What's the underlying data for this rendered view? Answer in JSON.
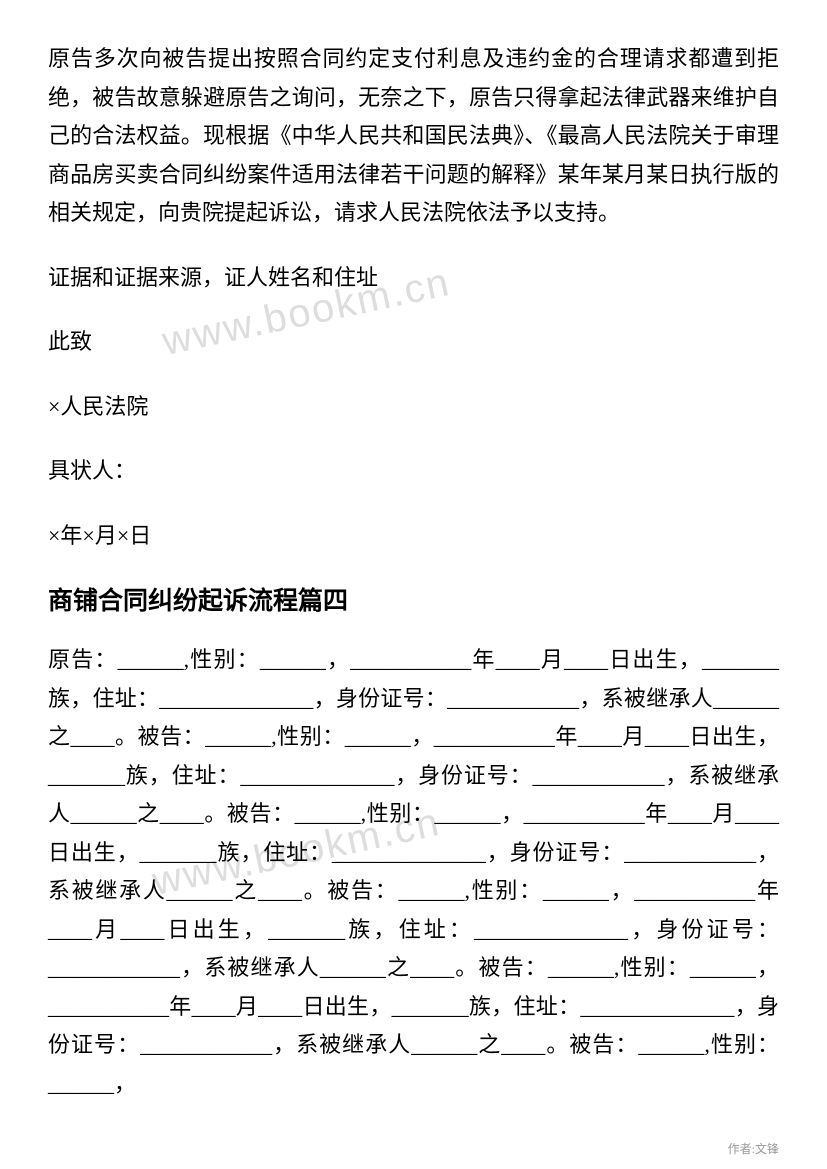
{
  "watermark": "www.bookm.cn",
  "para1": "原告多次向被告提出按照合同约定支付利息及违约金的合理请求都遭到拒绝，被告故意躲避原告之询问，无奈之下，原告只得拿起法律武器来维护自己的合法权益。现根据《中华人民共和国民法典》、《最高人民法院关于审理商品房买卖合同纠纷案件适用法律若干问题的解释》某年某月某日执行版的相关规定，向贵院提起诉讼，请求人民法院依法予以支持。",
  "para2": "证据和证据来源，证人姓名和住址",
  "para3": "此致",
  "para4": "×人民法院",
  "para5": "具状人：",
  "para6": "×年×月×日",
  "heading1": "商铺合同纠纷起诉流程篇四",
  "para7": "原告：______,性别：______，___________年____月____日出生，_______族，住址：______________，身份证号：____________，系被继承人______之____。被告：______,性别：______，___________年____月____日出生，_______族，住址：______________，身份证号：____________，系被继承人______之____。被告：______,性别：______，___________年____月____日出生，_______族，住址：______________，身份证号：____________，系被继承人______之____。被告：______,性别：______，___________年____月____日出生，_______族，住址：______________，身份证号：____________，系被继承人______之____。被告：______,性别：______，___________年____月____日出生，_______族，住址：______________，身份证号：____________，系被继承人______之____。被告：______,性别：______，",
  "footer": "作者:文锋"
}
